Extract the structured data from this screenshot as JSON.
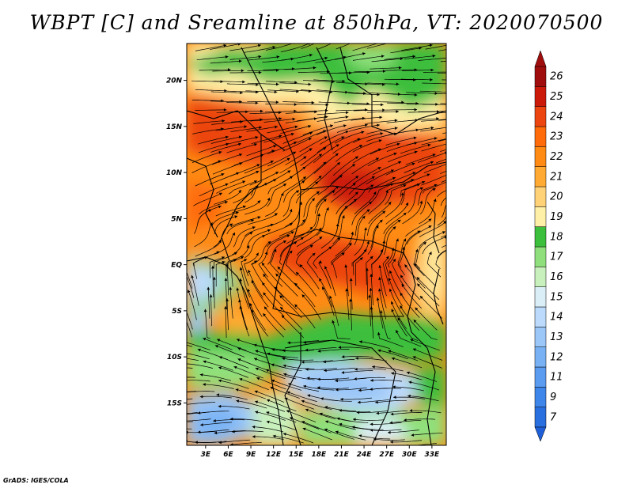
{
  "title": "WBPT [C] and Sreamline at 850hPa, VT: 2020070500",
  "footer": "GrADS: IGES/COLA",
  "map": {
    "lat_labels": [
      "20N",
      "15N",
      "10N",
      "5N",
      "EQ",
      "5S",
      "10S",
      "15S"
    ],
    "lon_labels": [
      "3E",
      "6E",
      "9E",
      "12E",
      "15E",
      "18E",
      "21E",
      "24E",
      "27E",
      "30E",
      "33E"
    ],
    "lat_values": [
      20,
      15,
      10,
      5,
      0,
      -5,
      -10,
      -15
    ],
    "lon_values": [
      3,
      6,
      9,
      12,
      15,
      18,
      21,
      24,
      27,
      30,
      33
    ]
  },
  "colorbar": {
    "labels": [
      "7",
      "9",
      "11",
      "12",
      "13",
      "14",
      "15",
      "16",
      "17",
      "18",
      "19",
      "20",
      "21",
      "22",
      "23",
      "24",
      "25",
      "26"
    ],
    "colors": [
      "#2a6fe0",
      "#3f86ea",
      "#5b9cf0",
      "#79b2f4",
      "#9ac6f8",
      "#bcdafb",
      "#daeef8",
      "#c8f0bc",
      "#8fe07c",
      "#3cbf3c",
      "#fff0a8",
      "#ffd278",
      "#ffaa32",
      "#ff8a14",
      "#ff6a0a",
      "#ec4510",
      "#cc1a0a",
      "#a00d0d"
    ]
  }
}
